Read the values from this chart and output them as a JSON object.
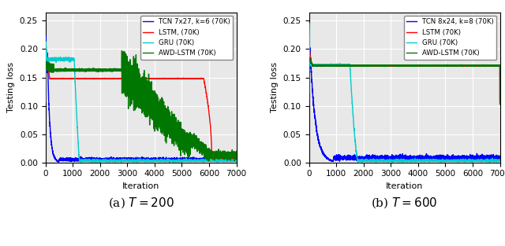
{
  "subplot_a": {
    "caption": "(a) $T = 200$",
    "xlabel": "Iteration",
    "ylabel": "Testing loss",
    "xlim": [
      0,
      7000
    ],
    "ylim": [
      -0.005,
      0.265
    ],
    "yticks": [
      0.0,
      0.05,
      0.1,
      0.15,
      0.2,
      0.25
    ],
    "xticks": [
      0,
      1000,
      2000,
      3000,
      4000,
      5000,
      6000,
      7000
    ],
    "legend": [
      "TCN 7x27, k=6 (70K)",
      "LSTM, (70K)",
      "GRU (70K)",
      "AWD-LSTM (70K)"
    ],
    "colors": [
      "#0000ff",
      "#ff0000",
      "#00cccc",
      "#007700"
    ]
  },
  "subplot_b": {
    "caption": "(b) $T = 600$",
    "xlabel": "Iteration",
    "ylabel": "Testing loss",
    "xlim": [
      0,
      7000
    ],
    "ylim": [
      -0.005,
      0.265
    ],
    "yticks": [
      0.0,
      0.05,
      0.1,
      0.15,
      0.2,
      0.25
    ],
    "xticks": [
      0,
      1000,
      2000,
      3000,
      4000,
      5000,
      6000,
      7000
    ],
    "legend": [
      "TCN 8x24, k=8 (70K)",
      "LSTM (70K)",
      "GRU (70K)",
      "AWD-LSTM (70K)"
    ],
    "colors": [
      "#0000ff",
      "#ff0000",
      "#00cccc",
      "#007700"
    ]
  },
  "background_color": "#e8e8e8",
  "grid_color": "white"
}
